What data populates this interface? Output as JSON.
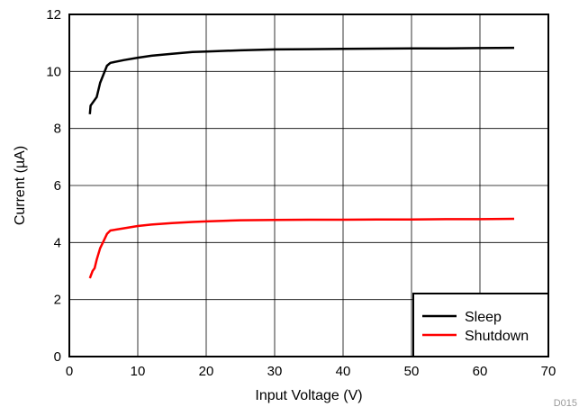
{
  "chart_data": {
    "type": "line",
    "xlabel": "Input Voltage (V)",
    "ylabel": "Current (µA)",
    "xlim": [
      0,
      70
    ],
    "ylim": [
      0,
      12
    ],
    "xticks": [
      0,
      10,
      20,
      30,
      40,
      50,
      60,
      70
    ],
    "yticks": [
      0,
      2,
      4,
      6,
      8,
      10,
      12
    ],
    "grid": true,
    "legend_position": "bottom-right",
    "figure_id": "D015",
    "series": [
      {
        "name": "Sleep",
        "color": "#000000",
        "points": [
          [
            3,
            8.5
          ],
          [
            3.1,
            8.8
          ],
          [
            4,
            9.1
          ],
          [
            4.5,
            9.6
          ],
          [
            5,
            9.9
          ],
          [
            5.5,
            10.2
          ],
          [
            6,
            10.3
          ],
          [
            8,
            10.4
          ],
          [
            10,
            10.48
          ],
          [
            12,
            10.55
          ],
          [
            15,
            10.62
          ],
          [
            18,
            10.68
          ],
          [
            20,
            10.7
          ],
          [
            25,
            10.74
          ],
          [
            30,
            10.77
          ],
          [
            35,
            10.78
          ],
          [
            40,
            10.79
          ],
          [
            45,
            10.8
          ],
          [
            50,
            10.81
          ],
          [
            55,
            10.81
          ],
          [
            60,
            10.82
          ],
          [
            65,
            10.83
          ]
        ]
      },
      {
        "name": "Shutdown",
        "color": "#ff0000",
        "points": [
          [
            3,
            2.75
          ],
          [
            3.4,
            3.0
          ],
          [
            3.7,
            3.1
          ],
          [
            4,
            3.4
          ],
          [
            4.5,
            3.8
          ],
          [
            5,
            4.05
          ],
          [
            5.5,
            4.3
          ],
          [
            6,
            4.42
          ],
          [
            8,
            4.5
          ],
          [
            10,
            4.58
          ],
          [
            12,
            4.63
          ],
          [
            15,
            4.68
          ],
          [
            18,
            4.72
          ],
          [
            20,
            4.74
          ],
          [
            25,
            4.78
          ],
          [
            30,
            4.79
          ],
          [
            35,
            4.8
          ],
          [
            40,
            4.8
          ],
          [
            45,
            4.81
          ],
          [
            50,
            4.81
          ],
          [
            55,
            4.82
          ],
          [
            60,
            4.82
          ],
          [
            65,
            4.83
          ]
        ]
      }
    ]
  }
}
